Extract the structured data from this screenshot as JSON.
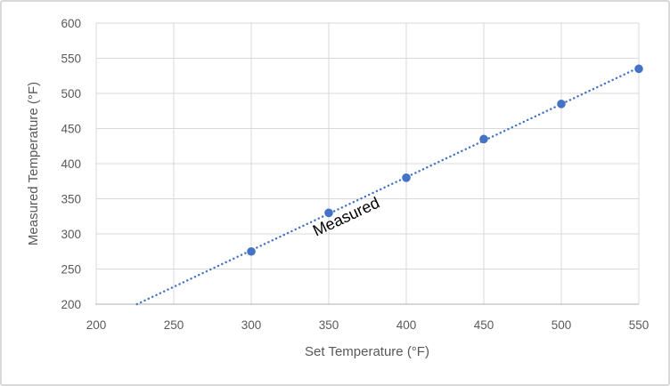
{
  "chart_data": {
    "type": "scatter",
    "xlabel": "Set Temperature (°F)",
    "ylabel": "Measured Temperature (°F)",
    "series_label": "Measured",
    "xlim": [
      200,
      550
    ],
    "ylim": [
      200,
      600
    ],
    "x_ticks": [
      200,
      250,
      300,
      350,
      400,
      450,
      500,
      550
    ],
    "y_ticks": [
      200,
      250,
      300,
      350,
      400,
      450,
      500,
      550,
      600
    ],
    "grid": true,
    "legend": "none",
    "series": [
      {
        "name": "Measured",
        "marker": "circle",
        "color": "#4472C4",
        "points": [
          [
            300,
            275
          ],
          [
            350,
            330
          ],
          [
            400,
            380
          ],
          [
            450,
            435
          ],
          [
            500,
            485
          ],
          [
            550,
            535
          ]
        ]
      }
    ],
    "trendline": {
      "style": "dotted",
      "color": "#4472C4",
      "slope": 1.04,
      "intercept": -35.3,
      "start": [
        226.3,
        200
      ],
      "end": [
        550,
        536.7
      ]
    },
    "colors": {
      "series": "#4472C4",
      "gridline": "#D9D9D9",
      "axis_line": "#BFBFBF",
      "tick_text": "#595959",
      "axis_title_text": "#595959",
      "series_label_text": "#000000",
      "chart_border": "#D9D9D9",
      "background": "#FFFFFF"
    }
  }
}
